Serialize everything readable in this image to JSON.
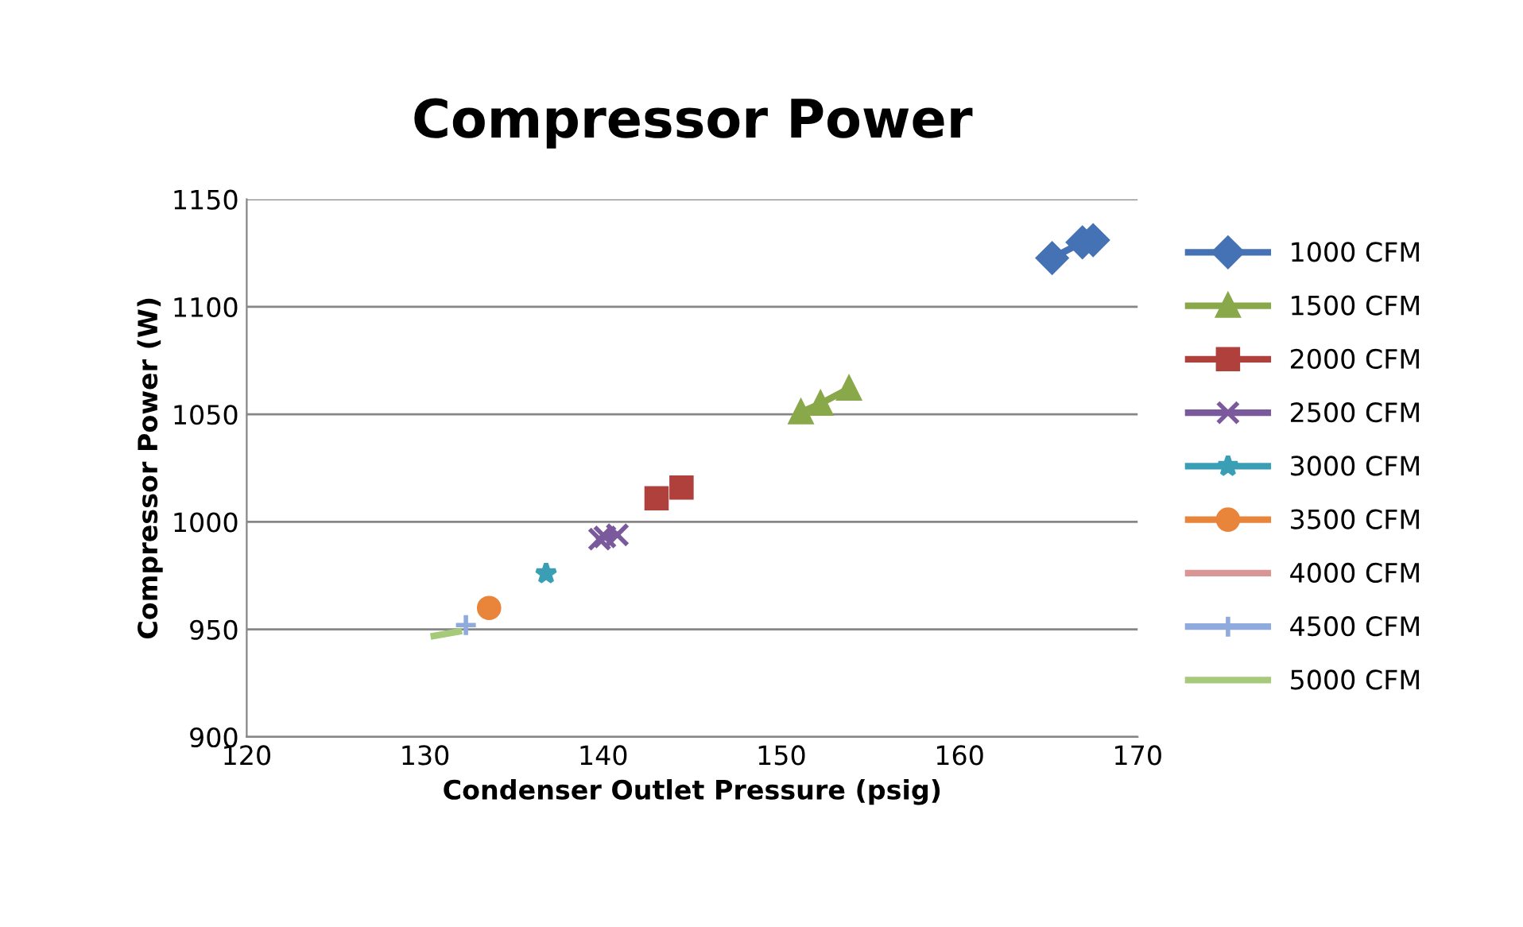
{
  "chart_data": {
    "type": "line",
    "title": "Compressor Power",
    "xlabel": "Condenser Outlet Pressure (psig)",
    "ylabel": "Compressor Power (W)",
    "xlim": [
      120,
      170
    ],
    "xticks": [
      120,
      130,
      140,
      150,
      160,
      170
    ],
    "ylim": [
      900,
      1150
    ],
    "yticks": [
      900,
      950,
      1000,
      1050,
      1100,
      1150
    ],
    "grid": "y",
    "legend": "right",
    "series": [
      {
        "name": "1000 CFM",
        "color": "#4572b4",
        "marker": "diamond",
        "x": [
          165.2,
          166.9,
          167.5
        ],
        "values": [
          1122.7,
          1130,
          1131
        ]
      },
      {
        "name": "1500 CFM",
        "color": "#89a84a",
        "marker": "triangle",
        "x": [
          151.1,
          152.2,
          153.8
        ],
        "values": [
          1051,
          1055,
          1062
        ]
      },
      {
        "name": "2000 CFM",
        "color": "#b0403c",
        "marker": "square",
        "type": "scatter",
        "x": [
          143.0,
          144.4
        ],
        "values": [
          1011,
          1016
        ]
      },
      {
        "name": "2500 CFM",
        "color": "#7a5a9c",
        "marker": "cross",
        "x": [
          139.8,
          140.1,
          140.8
        ],
        "values": [
          992,
          993,
          994
        ]
      },
      {
        "name": "3000 CFM",
        "color": "#3a9fb4",
        "marker": "star",
        "type": "scatter",
        "x": [
          136.8
        ],
        "values": [
          976
        ]
      },
      {
        "name": "3500 CFM",
        "color": "#e8853a",
        "marker": "circle",
        "type": "scatter",
        "x": [
          133.6
        ],
        "values": [
          960
        ]
      },
      {
        "name": "4000 CFM",
        "color": "#d99694",
        "marker": "none"
      },
      {
        "name": "4500 CFM",
        "color": "#8faadc",
        "marker": "plus",
        "type": "scatter",
        "x": [
          132.3
        ],
        "values": [
          952
        ]
      },
      {
        "name": "5000 CFM",
        "color": "#a6c97a",
        "marker": "none",
        "x": [
          130.5,
          131.9
        ],
        "values": [
          947,
          949
        ]
      }
    ]
  }
}
